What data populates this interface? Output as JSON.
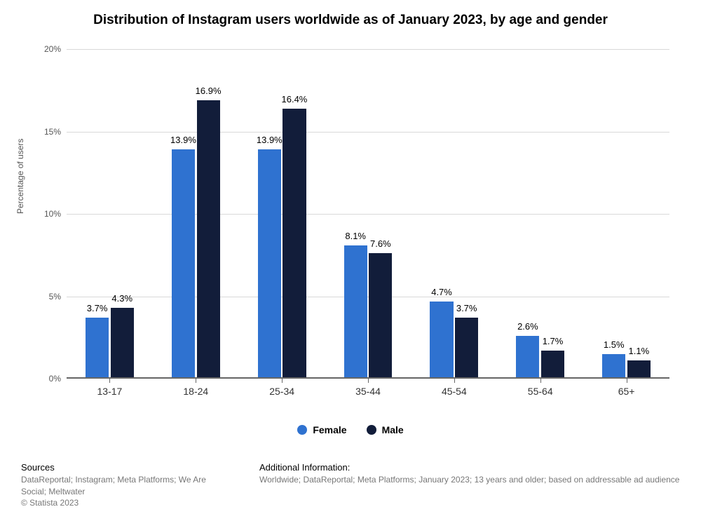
{
  "title": "Distribution of Instagram users worldwide as of January 2023, by age and gender",
  "title_fontsize": 19,
  "chart": {
    "type": "bar",
    "ylabel": "Percentage of users",
    "ylim": [
      0,
      20
    ],
    "ytick_step": 5,
    "ytick_suffix": "%",
    "grid_color": "#d9d9d9",
    "axis_color": "#666666",
    "background_color": "#ffffff",
    "categories": [
      "13-17",
      "18-24",
      "25-34",
      "35-44",
      "45-54",
      "55-64",
      "65+"
    ],
    "series": [
      {
        "name": "Female",
        "color": "#2f72d0",
        "values": [
          3.7,
          13.9,
          13.9,
          8.1,
          4.7,
          2.6,
          1.5
        ]
      },
      {
        "name": "Male",
        "color": "#121d3a",
        "values": [
          4.3,
          16.9,
          16.4,
          7.6,
          3.7,
          1.7,
          1.1
        ]
      }
    ],
    "value_label_suffix": "%",
    "value_label_fontsize": 13,
    "xlabel_fontsize": 14,
    "ylabel_fontsize": 12,
    "bar_group_width": 0.56,
    "bar_gap": 0.02
  },
  "legend": {
    "items": [
      {
        "label": "Female",
        "color": "#2f72d0"
      },
      {
        "label": "Male",
        "color": "#121d3a"
      }
    ]
  },
  "footer": {
    "sources_heading": "Sources",
    "sources_text": "DataReportal; Instagram; Meta Platforms; We Are Social; Meltwater",
    "copyright": "© Statista 2023",
    "info_heading": "Additional Information:",
    "info_text": "Worldwide; DataReportal; Meta Platforms; January 2023; 13 years and older; based on addressable ad audience"
  }
}
